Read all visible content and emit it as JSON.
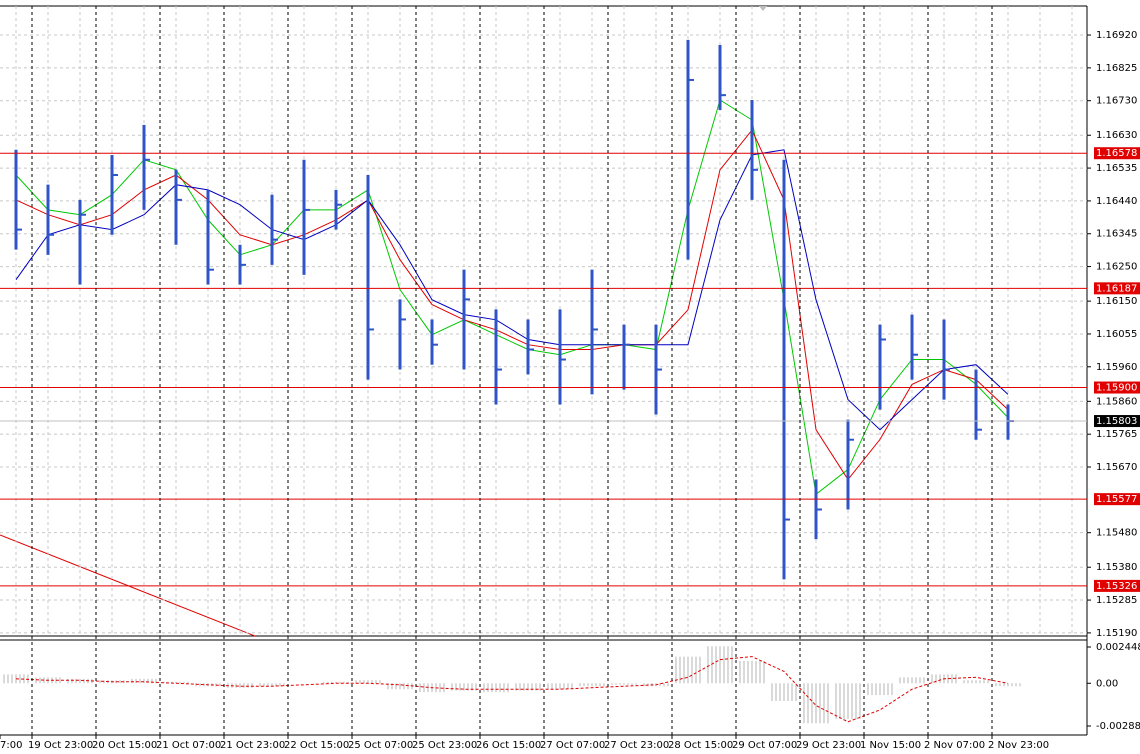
{
  "chart_data": [
    {
      "type": "ohlc",
      "high": [
        1.16588,
        1.16487,
        1.16443,
        1.16573,
        1.1666,
        1.1653,
        1.16472,
        1.16313,
        1.16458,
        1.16559,
        1.16472,
        1.16515,
        1.16155,
        1.16097,
        1.16241,
        1.16126,
        1.16097,
        1.16126,
        1.16241,
        1.16082,
        1.16082,
        1.16906,
        1.16891,
        1.16732,
        1.16559,
        1.15634,
        1.15807,
        1.16082,
        1.16111,
        1.16097,
        1.15952,
        1.15851
      ],
      "low": [
        1.16299,
        1.16284,
        1.16198,
        1.16342,
        1.16414,
        1.16313,
        1.16198,
        1.16198,
        1.16255,
        1.16226,
        1.16357,
        1.15923,
        1.15952,
        1.15966,
        1.15952,
        1.15851,
        1.15938,
        1.15851,
        1.1588,
        1.15894,
        1.15822,
        1.1627,
        1.16703,
        1.16443,
        1.15345,
        1.15461,
        1.15547,
        1.15836,
        1.15923,
        1.15865,
        1.15749,
        1.15749
      ],
      "close": [
        1.16357,
        1.16342,
        1.164,
        1.16515,
        1.16559,
        1.16443,
        1.16241,
        1.16255,
        1.16328,
        1.16414,
        1.16429,
        1.16068,
        1.16097,
        1.16024,
        1.16155,
        1.15952,
        1.1601,
        1.15981,
        1.16068,
        1.16024,
        1.15952,
        1.1679,
        1.16746,
        1.1653,
        1.15518,
        1.15547,
        1.15749,
        1.16039,
        1.15995,
        1.15952,
        1.15778,
        1.15803
      ],
      "color": "#2f54c8",
      "series": [
        {
          "color": "#00c800",
          "values": [
            1.16515,
            1.16414,
            1.164,
            1.16458,
            1.16559,
            1.1653,
            1.16385,
            1.16284,
            1.16313,
            1.16414,
            1.16414,
            1.16472,
            1.16183,
            1.16053,
            1.16096,
            1.16053,
            1.1601,
            1.15995,
            1.16024,
            1.16024,
            1.1601,
            1.16414,
            1.16732,
            1.16674,
            1.16154,
            1.15591,
            1.15663,
            1.15865,
            1.15981,
            1.15981,
            1.15909,
            1.15813
          ]
        },
        {
          "color": "#e00000",
          "values": [
            1.16443,
            1.164,
            1.16371,
            1.164,
            1.16472,
            1.16515,
            1.16443,
            1.16342,
            1.16313,
            1.16342,
            1.16385,
            1.16443,
            1.1627,
            1.1614,
            1.16096,
            1.16067,
            1.16024,
            1.1601,
            1.1601,
            1.16024,
            1.16024,
            1.16125,
            1.1653,
            1.16645,
            1.16443,
            1.15778,
            1.15634,
            1.1575,
            1.15909,
            1.15952,
            1.15923,
            1.15836
          ]
        },
        {
          "color": "#0000c0",
          "values": [
            1.16212,
            1.16342,
            1.16371,
            1.16357,
            1.164,
            1.16487,
            1.16472,
            1.16429,
            1.16357,
            1.16328,
            1.16371,
            1.16443,
            1.16313,
            1.16154,
            1.16111,
            1.16096,
            1.16039,
            1.16024,
            1.16024,
            1.16024,
            1.16024,
            1.16024,
            1.16385,
            1.16573,
            1.16588,
            1.16154,
            1.15865,
            1.15778,
            1.15865,
            1.15952,
            1.15966,
            1.1588
          ]
        }
      ],
      "levels": [
        1.16578,
        1.16187,
        {
          "value": 1.159,
          "label": "1.15900"
        },
        1.15577,
        1.15326
      ],
      "level_color": "#e00000",
      "current": 1.15803,
      "ylim": [
        1.15181,
        1.17004
      ],
      "yticks": [
        {
          "value": 1.1692,
          "label": "1.16920"
        },
        1.16825,
        {
          "value": 1.1673,
          "label": "1.16730"
        },
        {
          "value": 1.1663,
          "label": "1.16630"
        },
        1.16535,
        {
          "value": 1.1644,
          "label": "1.16440"
        },
        1.16345,
        {
          "value": 1.1625,
          "label": "1.16250"
        },
        {
          "value": 1.1615,
          "label": "1.16150"
        },
        1.16055,
        {
          "value": 1.1596,
          "label": "1.15960"
        },
        {
          "value": 1.1586,
          "label": "1.15860"
        },
        1.15765,
        {
          "value": 1.1567,
          "label": "1.15670"
        },
        {
          "value": 1.1548,
          "label": "1.15480"
        },
        {
          "value": 1.1538,
          "label": "1.15380"
        },
        1.15285,
        {
          "value": 1.1519,
          "label": "1.15190"
        }
      ],
      "grid": true
    },
    {
      "type": "oscillator",
      "values": [
        0.0006,
        0.0004,
        0.0003,
        0.0002,
        0.0003,
        0.0001,
        -0.0002,
        -0.0003,
        -0.0002,
        0.0,
        0.0001,
        0.0002,
        -0.0004,
        -0.0006,
        -0.0005,
        -0.0006,
        -0.0005,
        -0.0004,
        -0.0002,
        -0.0001,
        -0.0002,
        0.0018,
        0.0025,
        0.0015,
        -0.0012,
        -0.0027,
        -0.0024,
        -0.0008,
        0.0004,
        0.0006,
        0.0002,
        -0.0002
      ],
      "signal": [
        0.0003,
        0.0002,
        0.0002,
        0.0001,
        0.0001,
        0.0,
        -0.0001,
        -0.0002,
        -0.0002,
        -0.0001,
        0.0,
        0.0,
        -0.0001,
        -0.0003,
        -0.0004,
        -0.0004,
        -0.0004,
        -0.0004,
        -0.0003,
        -0.0002,
        -0.0001,
        0.0004,
        0.0016,
        0.0018,
        0.0008,
        -0.0015,
        -0.0026,
        -0.0018,
        -0.0004,
        0.0003,
        0.0004,
        0.0
      ],
      "color": "#b4b4b4",
      "signal_color": "#e00000",
      "ylim": [
        -0.003492,
        0.002921
      ],
      "yticks": [
        0.002448,
        {
          "value": 0,
          "label": "0.00"
        },
        -0.002885
      ],
      "xticks": [
        "7:00",
        "19 Oct 23:00",
        "20 Oct 15:00",
        "21 Oct 07:00",
        "21 Oct 23:00",
        "22 Oct 15:00",
        "25 Oct 07:00",
        "25 Oct 23:00",
        "26 Oct 15:00",
        "27 Oct 07:00",
        "27 Oct 23:00",
        "28 Oct 15:00",
        "29 Oct 07:00",
        "29 Oct 23:00",
        "1 Nov 15:00",
        "2 Nov 07:00",
        "2 Nov 23:00"
      ]
    }
  ]
}
